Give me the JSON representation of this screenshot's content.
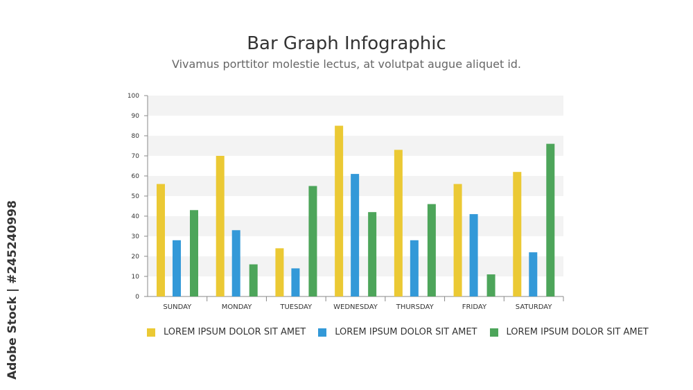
{
  "chart_data": {
    "type": "bar",
    "title": "Bar Graph Infographic",
    "subtitle": "Vivamus porttitor molestie lectus, at volutpat augue aliquet id.",
    "categories": [
      "SUNDAY",
      "MONDAY",
      "TUESDAY",
      "WEDNESDAY",
      "THURSDAY",
      "FRIDAY",
      "SATURDAY"
    ],
    "series": [
      {
        "name": "LOREM IPSUM DOLOR SIT AMET",
        "color": "#EBC934",
        "values": [
          56,
          70,
          24,
          85,
          73,
          56,
          62
        ]
      },
      {
        "name": "LOREM IPSUM DOLOR SIT AMET",
        "color": "#3399D8",
        "values": [
          28,
          33,
          14,
          61,
          28,
          41,
          22
        ]
      },
      {
        "name": "LOREM IPSUM DOLOR SIT AMET",
        "color": "#4DA55A",
        "values": [
          43,
          16,
          55,
          42,
          46,
          11,
          76
        ]
      }
    ],
    "yticks": [
      "0",
      "10",
      "20",
      "30",
      "40",
      "50",
      "60",
      "70",
      "80",
      "90",
      "100"
    ],
    "ylim": [
      0,
      100
    ],
    "xlabel": "",
    "ylabel": "",
    "grid": "alternating horizontal bands",
    "legend": "bottom"
  },
  "watermark": "Adobe Stock | #245240998"
}
